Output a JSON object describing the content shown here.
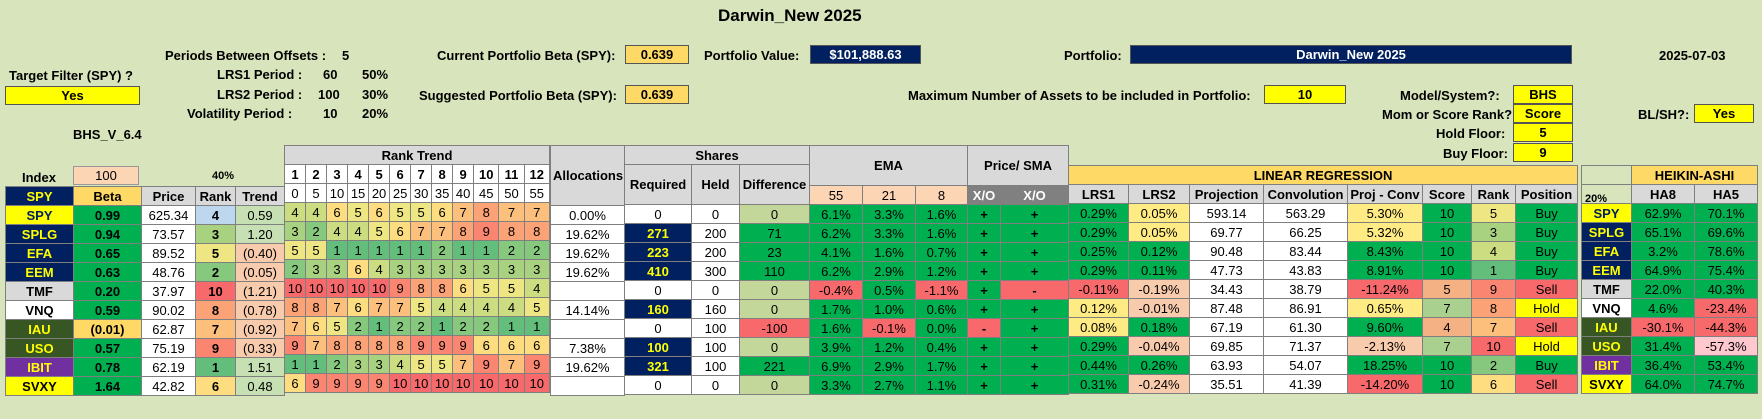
{
  "title": "Darwin_New 2025",
  "periods_between_offsets": {
    "label": "Periods Between Offsets :",
    "value": "5"
  },
  "lrs1": {
    "label": "LRS1 Period :",
    "value": "60",
    "pct": "50%"
  },
  "lrs2": {
    "label": "LRS2 Period :",
    "value": "100",
    "pct": "30%"
  },
  "volatility": {
    "label": "Volatility Period :",
    "value": "10",
    "pct": "20%"
  },
  "target_filter": {
    "label": "Target Filter (SPY) ?",
    "value": "Yes"
  },
  "version": "BHS_V_6.4",
  "current_beta": {
    "label": "Current Portfolio Beta (SPY):",
    "value": "0.639"
  },
  "suggested_beta": {
    "label": "Suggested Portfolio Beta (SPY):",
    "value": "0.639"
  },
  "portfolio_value": {
    "label": "Portfolio Value:",
    "value": "$101,888.63"
  },
  "portfolio": {
    "label": "Portfolio:",
    "value": "Darwin_New 2025"
  },
  "date": "2025-07-03",
  "max_assets": {
    "label": "Maximum Number of Assets to be included in Portfolio:",
    "value": "10"
  },
  "model": {
    "label": "Model/System?:",
    "value": "BHS"
  },
  "mom_score": {
    "label": "Mom or Score Rank?:",
    "value": "Score"
  },
  "hold_floor": {
    "label": "Hold Floor:",
    "value": "5"
  },
  "buy_floor": {
    "label": "Buy Floor:",
    "value": "9"
  },
  "blsh": {
    "label": "BL/SH?:",
    "value": "Yes"
  },
  "headers": {
    "index": "Index",
    "index_value": "100",
    "pct40": "40%",
    "rank_trend": "Rank Trend",
    "allocations": "Allocations",
    "shares": "Shares",
    "ema": "EMA",
    "price_sma": "Price/ SMA",
    "linreg": "LINEAR REGRESSION",
    "pct20": "20%",
    "heikin": "HEIKIN-ASHI",
    "beta": "Beta",
    "price": "Price",
    "rank": "Rank",
    "trend": "Trend",
    "required": "Required",
    "held": "Held",
    "difference": "Difference",
    "ema55": "55",
    "ema21": "21",
    "ema8": "8",
    "xo1": "X/O",
    "xo2": "X/O",
    "lrs1": "LRS1",
    "lrs2": "LRS2",
    "projection": "Projection",
    "convolution": "Convolution",
    "projconv": "Proj - Conv",
    "score": "Score",
    "rank2": "Rank",
    "position": "Position",
    "ha8": "HA8",
    "ha5": "HA5",
    "rt_nums": [
      "1",
      "2",
      "3",
      "4",
      "5",
      "6",
      "7",
      "8",
      "9",
      "10",
      "11",
      "12"
    ],
    "rt_offsets": [
      "0",
      "5",
      "10",
      "15",
      "20",
      "25",
      "30",
      "35",
      "40",
      "45",
      "50",
      "55"
    ]
  },
  "rows": [
    {
      "t": "SPY",
      "beta": "0.99",
      "price": "625.34",
      "rank": "4",
      "trend": "0.59",
      "rt": [
        "4",
        "4",
        "6",
        "5",
        "6",
        "5",
        "5",
        "6",
        "7",
        "8",
        "7",
        "7"
      ],
      "alloc": "0.00%",
      "req": "0",
      "held": "0",
      "diff": "0",
      "e55": "6.1%",
      "e21": "3.3%",
      "e8": "1.6%",
      "x1": "+",
      "x2": "+",
      "l1": "0.29%",
      "l2": "0.05%",
      "proj": "593.14",
      "conv": "563.29",
      "pc": "5.30%",
      "score": "10",
      "rk": "5",
      "pos": "Buy",
      "ha8": "62.9%",
      "ha5": "70.1%"
    },
    {
      "t": "SPLG",
      "beta": "0.94",
      "price": "73.57",
      "rank": "3",
      "trend": "1.20",
      "rt": [
        "3",
        "2",
        "4",
        "4",
        "5",
        "6",
        "7",
        "7",
        "8",
        "9",
        "8",
        "8"
      ],
      "alloc": "19.62%",
      "req": "271",
      "held": "200",
      "diff": "71",
      "e55": "6.2%",
      "e21": "3.3%",
      "e8": "1.6%",
      "x1": "+",
      "x2": "+",
      "l1": "0.29%",
      "l2": "0.05%",
      "proj": "69.77",
      "conv": "66.25",
      "pc": "5.32%",
      "score": "10",
      "rk": "3",
      "pos": "Buy",
      "ha8": "65.1%",
      "ha5": "69.6%"
    },
    {
      "t": "EFA",
      "beta": "0.65",
      "price": "89.52",
      "rank": "5",
      "trend": "(0.40)",
      "rt": [
        "5",
        "5",
        "1",
        "1",
        "1",
        "1",
        "1",
        "2",
        "1",
        "1",
        "2",
        "2"
      ],
      "alloc": "19.62%",
      "req": "223",
      "held": "200",
      "diff": "23",
      "e55": "4.1%",
      "e21": "1.6%",
      "e8": "0.7%",
      "x1": "+",
      "x2": "+",
      "l1": "0.25%",
      "l2": "0.12%",
      "proj": "90.48",
      "conv": "83.44",
      "pc": "8.43%",
      "score": "10",
      "rk": "4",
      "pos": "Buy",
      "ha8": "3.2%",
      "ha5": "78.6%"
    },
    {
      "t": "EEM",
      "beta": "0.63",
      "price": "48.76",
      "rank": "2",
      "trend": "(0.05)",
      "rt": [
        "2",
        "3",
        "3",
        "6",
        "4",
        "3",
        "3",
        "3",
        "3",
        "3",
        "3",
        "3"
      ],
      "alloc": "19.62%",
      "req": "410",
      "held": "300",
      "diff": "110",
      "e55": "6.2%",
      "e21": "2.9%",
      "e8": "1.2%",
      "x1": "+",
      "x2": "+",
      "l1": "0.29%",
      "l2": "0.11%",
      "proj": "47.73",
      "conv": "43.83",
      "pc": "8.91%",
      "score": "10",
      "rk": "1",
      "pos": "Buy",
      "ha8": "64.9%",
      "ha5": "75.4%"
    },
    {
      "t": "TMF",
      "beta": "0.20",
      "price": "37.97",
      "rank": "10",
      "trend": "(1.21)",
      "rt": [
        "10",
        "10",
        "10",
        "10",
        "10",
        "9",
        "8",
        "8",
        "6",
        "5",
        "5",
        "4"
      ],
      "alloc": "",
      "req": "0",
      "held": "0",
      "diff": "0",
      "e55": "-0.4%",
      "e21": "0.5%",
      "e8": "-1.1%",
      "x1": "+",
      "x2": "-",
      "l1": "-0.11%",
      "l2": "-0.19%",
      "proj": "34.43",
      "conv": "38.79",
      "pc": "-11.24%",
      "score": "5",
      "rk": "9",
      "pos": "Sell",
      "ha8": "22.0%",
      "ha5": "40.3%"
    },
    {
      "t": "VNQ",
      "beta": "0.59",
      "price": "90.02",
      "rank": "8",
      "trend": "(0.78)",
      "rt": [
        "8",
        "8",
        "7",
        "6",
        "7",
        "7",
        "5",
        "4",
        "4",
        "4",
        "4",
        "5"
      ],
      "alloc": "14.14%",
      "req": "160",
      "held": "160",
      "diff": "0",
      "e55": "1.7%",
      "e21": "1.0%",
      "e8": "0.6%",
      "x1": "+",
      "x2": "+",
      "l1": "0.12%",
      "l2": "-0.01%",
      "proj": "87.48",
      "conv": "86.91",
      "pc": "0.65%",
      "score": "7",
      "rk": "8",
      "pos": "Hold",
      "ha8": "4.6%",
      "ha5": "-23.4%"
    },
    {
      "t": "IAU",
      "beta": "(0.01)",
      "price": "62.87",
      "rank": "7",
      "trend": "(0.92)",
      "rt": [
        "7",
        "6",
        "5",
        "2",
        "1",
        "2",
        "2",
        "1",
        "2",
        "2",
        "1",
        "1"
      ],
      "alloc": "",
      "req": "0",
      "held": "100",
      "diff": "-100",
      "e55": "1.6%",
      "e21": "-0.1%",
      "e8": "0.0%",
      "x1": "-",
      "x2": "+",
      "l1": "0.08%",
      "l2": "0.18%",
      "proj": "67.19",
      "conv": "61.30",
      "pc": "9.60%",
      "score": "4",
      "rk": "7",
      "pos": "Sell",
      "ha8": "-30.1%",
      "ha5": "-44.3%"
    },
    {
      "t": "USO",
      "beta": "0.57",
      "price": "75.19",
      "rank": "9",
      "trend": "(0.33)",
      "rt": [
        "9",
        "7",
        "8",
        "8",
        "8",
        "8",
        "9",
        "9",
        "9",
        "6",
        "6",
        "6"
      ],
      "alloc": "7.38%",
      "req": "100",
      "held": "100",
      "diff": "0",
      "e55": "3.9%",
      "e21": "1.2%",
      "e8": "0.4%",
      "x1": "+",
      "x2": "+",
      "l1": "0.29%",
      "l2": "-0.04%",
      "proj": "69.85",
      "conv": "71.37",
      "pc": "-2.13%",
      "score": "7",
      "rk": "10",
      "pos": "Hold",
      "ha8": "31.4%",
      "ha5": "-57.3%"
    },
    {
      "t": "IBIT",
      "beta": "0.78",
      "price": "62.19",
      "rank": "1",
      "trend": "1.51",
      "rt": [
        "1",
        "1",
        "2",
        "3",
        "3",
        "4",
        "5",
        "5",
        "7",
        "9",
        "7",
        "9"
      ],
      "alloc": "19.62%",
      "req": "321",
      "held": "100",
      "diff": "221",
      "e55": "6.9%",
      "e21": "2.9%",
      "e8": "1.7%",
      "x1": "+",
      "x2": "+",
      "l1": "0.44%",
      "l2": "0.26%",
      "proj": "63.93",
      "conv": "54.07",
      "pc": "18.25%",
      "score": "10",
      "rk": "2",
      "pos": "Buy",
      "ha8": "36.4%",
      "ha5": "53.4%"
    },
    {
      "t": "SVXY",
      "beta": "1.64",
      "price": "42.82",
      "rank": "6",
      "trend": "0.48",
      "rt": [
        "6",
        "9",
        "9",
        "9",
        "9",
        "10",
        "10",
        "10",
        "10",
        "10",
        "10",
        "10"
      ],
      "alloc": "",
      "req": "0",
      "held": "0",
      "diff": "0",
      "e55": "3.3%",
      "e21": "2.7%",
      "e8": "1.1%",
      "x1": "+",
      "x2": "+",
      "l1": "0.31%",
      "l2": "-0.24%",
      "proj": "35.51",
      "conv": "41.39",
      "pc": "-14.20%",
      "score": "10",
      "rk": "6",
      "pos": "Sell",
      "ha8": "64.0%",
      "ha5": "74.7%"
    }
  ]
}
